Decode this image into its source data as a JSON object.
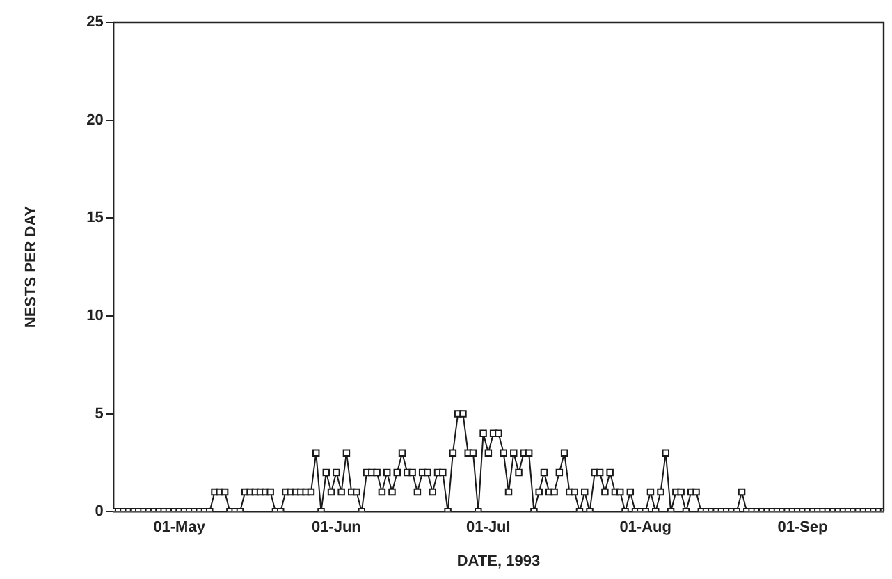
{
  "chart_data": {
    "type": "line",
    "xlabel": "DATE, 1993",
    "ylabel": "NESTS PER DAY",
    "x": [
      "1993-04-18",
      "1993-04-19",
      "1993-04-20",
      "1993-04-21",
      "1993-04-22",
      "1993-04-23",
      "1993-04-24",
      "1993-04-25",
      "1993-04-26",
      "1993-04-27",
      "1993-04-28",
      "1993-04-29",
      "1993-04-30",
      "1993-05-01",
      "1993-05-02",
      "1993-05-03",
      "1993-05-04",
      "1993-05-05",
      "1993-05-06",
      "1993-05-07",
      "1993-05-08",
      "1993-05-09",
      "1993-05-10",
      "1993-05-11",
      "1993-05-12",
      "1993-05-13",
      "1993-05-14",
      "1993-05-15",
      "1993-05-16",
      "1993-05-17",
      "1993-05-18",
      "1993-05-19",
      "1993-05-20",
      "1993-05-21",
      "1993-05-22",
      "1993-05-23",
      "1993-05-24",
      "1993-05-25",
      "1993-05-26",
      "1993-05-27",
      "1993-05-28",
      "1993-05-29",
      "1993-05-30",
      "1993-05-31",
      "1993-06-01",
      "1993-06-02",
      "1993-06-03",
      "1993-06-04",
      "1993-06-05",
      "1993-06-06",
      "1993-06-07",
      "1993-06-08",
      "1993-06-09",
      "1993-06-10",
      "1993-06-11",
      "1993-06-12",
      "1993-06-13",
      "1993-06-14",
      "1993-06-15",
      "1993-06-16",
      "1993-06-17",
      "1993-06-18",
      "1993-06-19",
      "1993-06-20",
      "1993-06-21",
      "1993-06-22",
      "1993-06-23",
      "1993-06-24",
      "1993-06-25",
      "1993-06-26",
      "1993-06-27",
      "1993-06-28",
      "1993-06-29",
      "1993-06-30",
      "1993-07-01",
      "1993-07-02",
      "1993-07-03",
      "1993-07-04",
      "1993-07-05",
      "1993-07-06",
      "1993-07-07",
      "1993-07-08",
      "1993-07-09",
      "1993-07-10",
      "1993-07-11",
      "1993-07-12",
      "1993-07-13",
      "1993-07-14",
      "1993-07-15",
      "1993-07-16",
      "1993-07-17",
      "1993-07-18",
      "1993-07-19",
      "1993-07-20",
      "1993-07-21",
      "1993-07-22",
      "1993-07-23",
      "1993-07-24",
      "1993-07-25",
      "1993-07-26",
      "1993-07-27",
      "1993-07-28",
      "1993-07-29",
      "1993-07-30",
      "1993-07-31",
      "1993-08-01",
      "1993-08-02",
      "1993-08-03",
      "1993-08-04",
      "1993-08-05",
      "1993-08-06",
      "1993-08-07",
      "1993-08-08",
      "1993-08-09",
      "1993-08-10",
      "1993-08-11",
      "1993-08-12",
      "1993-08-13",
      "1993-08-14",
      "1993-08-15",
      "1993-08-16",
      "1993-08-17",
      "1993-08-18",
      "1993-08-19",
      "1993-08-20",
      "1993-08-21",
      "1993-08-22",
      "1993-08-23",
      "1993-08-24",
      "1993-08-25",
      "1993-08-26",
      "1993-08-27",
      "1993-08-28",
      "1993-08-29",
      "1993-08-30",
      "1993-08-31",
      "1993-09-01",
      "1993-09-02",
      "1993-09-03",
      "1993-09-04",
      "1993-09-05",
      "1993-09-06",
      "1993-09-07",
      "1993-09-08",
      "1993-09-09",
      "1993-09-10",
      "1993-09-11",
      "1993-09-12",
      "1993-09-13",
      "1993-09-14",
      "1993-09-15",
      "1993-09-16",
      "1993-09-17"
    ],
    "series": [
      {
        "color": "#1a1a1a",
        "values": [
          0,
          0,
          0,
          0,
          0,
          0,
          0,
          0,
          0,
          0,
          0,
          0,
          0,
          0,
          0,
          0,
          0,
          0,
          0,
          0,
          1,
          1,
          1,
          0,
          0,
          0,
          1,
          1,
          1,
          1,
          1,
          1,
          0,
          0,
          1,
          1,
          1,
          1,
          1,
          1,
          3,
          0,
          2,
          1,
          2,
          1,
          3,
          1,
          1,
          0,
          2,
          2,
          2,
          1,
          2,
          1,
          2,
          3,
          2,
          2,
          1,
          2,
          2,
          1,
          2,
          2,
          0,
          3,
          5,
          5,
          3,
          3,
          0,
          4,
          3,
          4,
          4,
          3,
          1,
          3,
          2,
          3,
          3,
          0,
          1,
          2,
          1,
          1,
          2,
          3,
          1,
          1,
          0,
          1,
          0,
          2,
          2,
          1,
          2,
          1,
          1,
          0,
          1,
          0,
          0,
          0,
          1,
          0,
          1,
          3,
          0,
          1,
          1,
          0,
          1,
          1,
          0,
          0,
          0,
          0,
          0,
          0,
          0,
          0,
          1,
          0,
          0,
          0,
          0,
          0,
          0,
          0,
          0,
          0,
          0,
          0,
          0,
          0,
          0,
          0,
          0,
          0,
          0,
          0,
          0,
          0,
          0,
          0,
          0,
          0,
          0,
          0,
          0
        ]
      }
    ],
    "xlim": [
      "1993-04-18",
      "1993-09-17"
    ],
    "xticks": [
      {
        "value": "1993-05-01",
        "label": "01-May"
      },
      {
        "value": "1993-06-01",
        "label": "01-Jun"
      },
      {
        "value": "1993-07-01",
        "label": "01-Jul"
      },
      {
        "value": "1993-08-01",
        "label": "01-Aug"
      },
      {
        "value": "1993-09-01",
        "label": "01-Sep"
      }
    ],
    "ylim": [
      0,
      25
    ],
    "yticks": [
      0,
      5,
      10,
      15,
      20,
      25
    ],
    "marker": "square",
    "line_style": "solid"
  }
}
